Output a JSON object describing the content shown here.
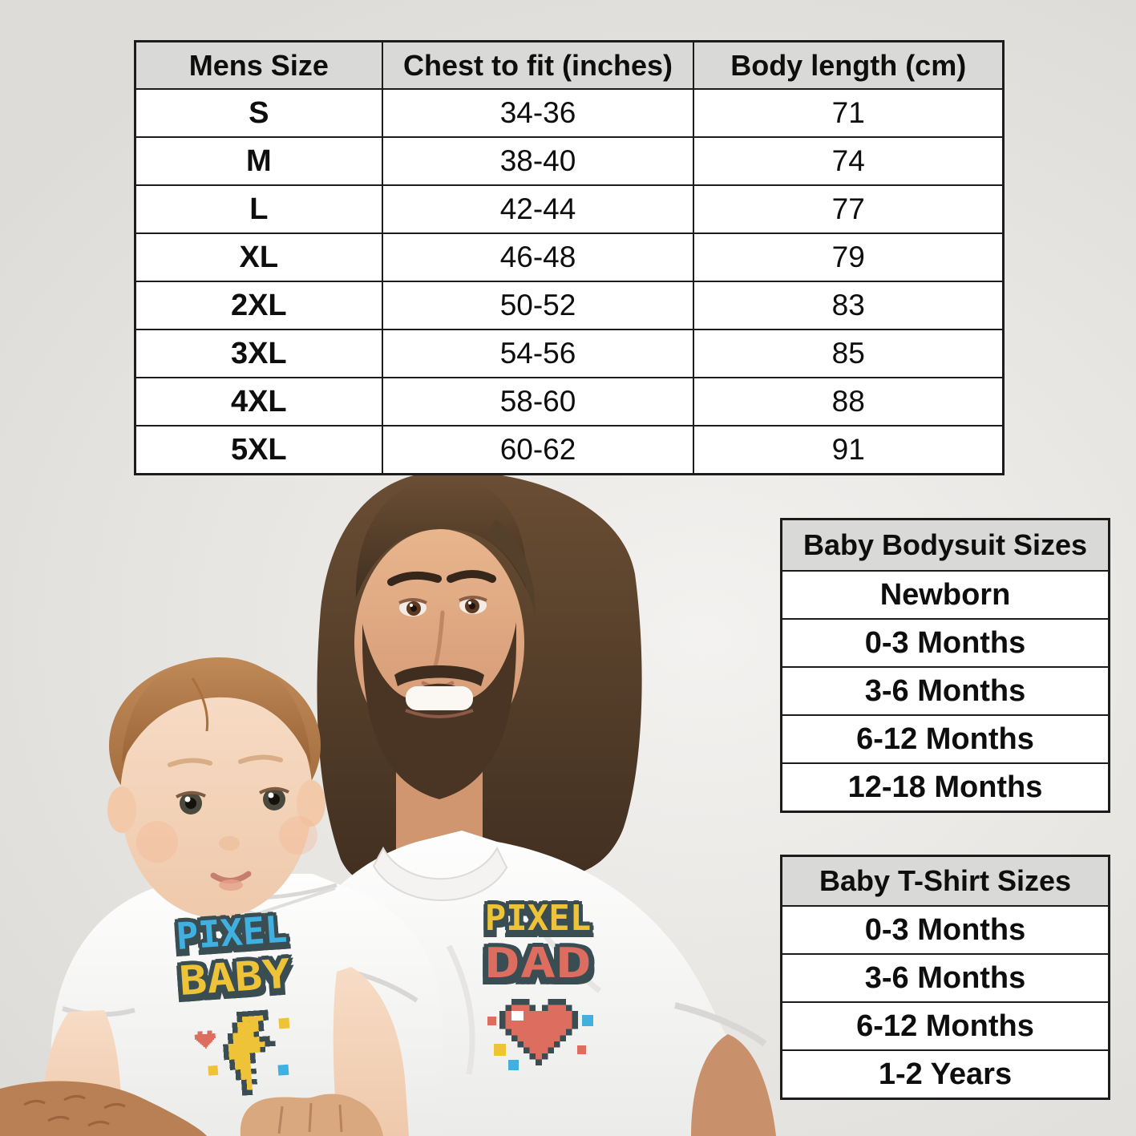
{
  "mens_table": {
    "headers": [
      "Mens Size",
      "Chest to fit (inches)",
      "Body length (cm)"
    ],
    "rows": [
      [
        "S",
        "34-36",
        "71"
      ],
      [
        "M",
        "38-40",
        "74"
      ],
      [
        "L",
        "42-44",
        "77"
      ],
      [
        "XL",
        "46-48",
        "79"
      ],
      [
        "2XL",
        "50-52",
        "83"
      ],
      [
        "3XL",
        "54-56",
        "85"
      ],
      [
        "4XL",
        "58-60",
        "88"
      ],
      [
        "5XL",
        "60-62",
        "91"
      ]
    ]
  },
  "baby_bodysuit_table": {
    "header": "Baby Bodysuit Sizes",
    "rows": [
      "Newborn",
      "0-3 Months",
      "3-6 Months",
      "6-12 Months",
      "12-18 Months"
    ]
  },
  "baby_tshirt_table": {
    "header": "Baby T-Shirt Sizes",
    "rows": [
      "0-3 Months",
      "3-6 Months",
      "6-12 Months",
      "1-2 Years"
    ]
  },
  "shirts": {
    "baby": {
      "line1": "PIXEL",
      "line2": "BABY",
      "line1_color": "#3fb0e0",
      "line2_color": "#eec338",
      "icon": "lightning-bolt"
    },
    "dad": {
      "line1": "PIXEL",
      "line2": "DAD",
      "line1_color": "#eec338",
      "line2_color": "#dd6e5f",
      "icon": "pixel-heart"
    }
  },
  "colors": {
    "pixel_outline": "#3a4d52",
    "pixel_blue": "#3fb0e0",
    "pixel_yellow": "#eec338",
    "pixel_red": "#dd6e5f",
    "table_header_bg": "#d9d9d8",
    "table_border": "#1c1c1c",
    "backdrop": "#eae8e5"
  }
}
